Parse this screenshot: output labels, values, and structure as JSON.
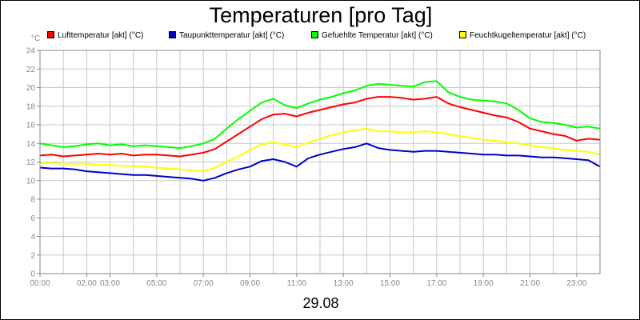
{
  "chart_data": {
    "type": "line",
    "title": "Temperaturen [pro Tag]",
    "y_unit": "°C",
    "date": "29.08",
    "xlabel": "",
    "ylabel": "",
    "ylim": [
      0,
      24
    ],
    "y_ticks": [
      0,
      2,
      4,
      6,
      8,
      10,
      12,
      14,
      16,
      18,
      20,
      22,
      24
    ],
    "xlim": [
      0,
      24
    ],
    "x_ticks": [
      {
        "label": "00:00",
        "hour": 0
      },
      {
        "label": "02:00",
        "hour": 2
      },
      {
        "label": "03:00",
        "hour": 3
      },
      {
        "label": "05:00",
        "hour": 5
      },
      {
        "label": "07:00",
        "hour": 7
      },
      {
        "label": "09:00",
        "hour": 9
      },
      {
        "label": "11:00",
        "hour": 11
      },
      {
        "label": "13:00",
        "hour": 13
      },
      {
        "label": "15:00",
        "hour": 15
      },
      {
        "label": "17:00",
        "hour": 17
      },
      {
        "label": "19:00",
        "hour": 19
      },
      {
        "label": "21:00",
        "hour": 21
      },
      {
        "label": "23:00",
        "hour": 23
      }
    ],
    "grid": true,
    "legend_position": "top",
    "x": [
      0,
      0.5,
      1,
      1.5,
      2,
      2.5,
      3,
      3.5,
      4,
      4.5,
      5,
      5.5,
      6,
      6.5,
      7,
      7.5,
      8,
      8.5,
      9,
      9.5,
      10,
      10.5,
      11,
      11.5,
      12,
      12.5,
      13,
      13.5,
      14,
      14.5,
      15,
      15.5,
      16,
      16.5,
      17,
      17.5,
      18,
      18.5,
      19,
      19.5,
      20,
      20.5,
      21,
      21.5,
      22,
      22.5,
      23,
      23.5,
      24
    ],
    "series": [
      {
        "name": "Lufttemperatur [akt] (°C)",
        "color": "#ff0000",
        "values": [
          12.7,
          12.8,
          12.6,
          12.7,
          12.8,
          12.9,
          12.8,
          12.9,
          12.7,
          12.8,
          12.8,
          12.7,
          12.6,
          12.8,
          13.0,
          13.4,
          14.2,
          15.0,
          15.8,
          16.6,
          17.1,
          17.2,
          16.9,
          17.3,
          17.6,
          17.9,
          18.2,
          18.4,
          18.8,
          19.0,
          19.0,
          18.9,
          18.7,
          18.8,
          19.0,
          18.3,
          17.9,
          17.6,
          17.3,
          17.0,
          16.8,
          16.3,
          15.6,
          15.3,
          15.0,
          14.8,
          14.3,
          14.5,
          14.4
        ]
      },
      {
        "name": "Taupunkttemperatur [akt] (°C)",
        "color": "#0000c8",
        "values": [
          11.4,
          11.3,
          11.3,
          11.2,
          11.0,
          10.9,
          10.8,
          10.7,
          10.6,
          10.6,
          10.5,
          10.4,
          10.3,
          10.2,
          10.0,
          10.3,
          10.8,
          11.2,
          11.5,
          12.1,
          12.3,
          12.0,
          11.5,
          12.4,
          12.8,
          13.1,
          13.4,
          13.6,
          14.0,
          13.5,
          13.3,
          13.2,
          13.1,
          13.2,
          13.2,
          13.1,
          13.0,
          12.9,
          12.8,
          12.8,
          12.7,
          12.7,
          12.6,
          12.5,
          12.5,
          12.4,
          12.3,
          12.2,
          11.5
        ]
      },
      {
        "name": "Gefuehlte Temperatur [akt] (°C)",
        "color": "#00ff00",
        "values": [
          14.0,
          13.8,
          13.6,
          13.7,
          13.9,
          14.0,
          13.8,
          13.9,
          13.7,
          13.8,
          13.7,
          13.6,
          13.5,
          13.7,
          14.0,
          14.5,
          15.6,
          16.6,
          17.5,
          18.4,
          18.8,
          18.1,
          17.8,
          18.3,
          18.7,
          19.0,
          19.4,
          19.7,
          20.2,
          20.4,
          20.3,
          20.2,
          20.1,
          20.6,
          20.7,
          19.5,
          19.0,
          18.7,
          18.6,
          18.5,
          18.3,
          17.6,
          16.7,
          16.3,
          16.2,
          16.0,
          15.7,
          15.8,
          15.6
        ]
      },
      {
        "name": "Feuchtkugeltemperatur [akt] (°C)",
        "color": "#ffff00",
        "values": [
          11.9,
          11.9,
          11.8,
          11.8,
          11.8,
          11.7,
          11.7,
          11.6,
          11.6,
          11.5,
          11.4,
          11.3,
          11.2,
          11.1,
          11.0,
          11.4,
          12.0,
          12.6,
          13.3,
          13.9,
          14.1,
          13.9,
          13.6,
          14.1,
          14.5,
          14.9,
          15.2,
          15.4,
          15.6,
          15.3,
          15.3,
          15.2,
          15.2,
          15.3,
          15.2,
          15.0,
          14.8,
          14.6,
          14.4,
          14.3,
          14.1,
          14.0,
          13.8,
          13.6,
          13.5,
          13.3,
          13.2,
          13.1,
          12.8
        ]
      }
    ]
  }
}
